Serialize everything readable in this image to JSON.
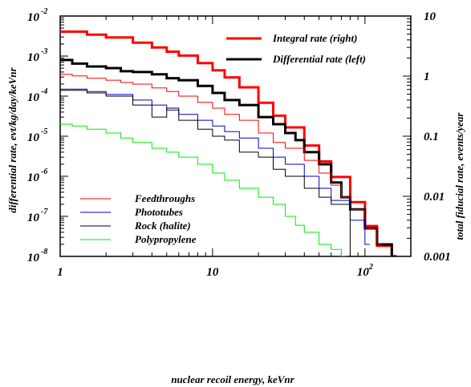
{
  "chart_data": {
    "type": "line",
    "style": "step-histogram",
    "x_axis": {
      "label": "nuclear recoil energy, keVnr",
      "scale": "log",
      "range": [
        1,
        200
      ],
      "ticks": [
        {
          "value": 1,
          "base": "1",
          "exp": ""
        },
        {
          "value": 10,
          "base": "10",
          "exp": ""
        },
        {
          "value": 100,
          "base": "10",
          "exp": "2"
        }
      ]
    },
    "y_left_axis": {
      "label": "differential rate, evt/kg/day/keVnr",
      "scale": "log",
      "range": [
        1e-08,
        0.01
      ],
      "ticks": [
        {
          "value": 0.01,
          "base": "10",
          "exp": "-2"
        },
        {
          "value": 0.001,
          "base": "10",
          "exp": "-3"
        },
        {
          "value": 0.0001,
          "base": "10",
          "exp": "-4"
        },
        {
          "value": 1e-05,
          "base": "10",
          "exp": "-5"
        },
        {
          "value": 1e-06,
          "base": "10",
          "exp": "-6"
        },
        {
          "value": 1e-07,
          "base": "10",
          "exp": "-7"
        },
        {
          "value": 1e-08,
          "base": "10",
          "exp": "-8"
        }
      ]
    },
    "y_right_axis": {
      "label": "total fiducial rate, events/year",
      "scale": "log",
      "range": [
        0.001,
        10
      ],
      "ticks": [
        {
          "value": 10,
          "text": "10"
        },
        {
          "value": 1,
          "text": "1"
        },
        {
          "value": 0.1,
          "text": "0.1"
        },
        {
          "value": 0.01,
          "text": "0.01"
        },
        {
          "value": 0.001,
          "text": "0.001"
        }
      ]
    },
    "legend_top": [
      {
        "name": "Integral rate (right)",
        "color": "#ff0000",
        "width": 3
      },
      {
        "name": "Differential rate (left)",
        "color": "#000000",
        "width": 3
      }
    ],
    "legend_bottom": [
      {
        "name": "Feedthroughs",
        "color": "#ff0000",
        "width": 1
      },
      {
        "name": "Phototubes",
        "color": "#0000cc",
        "width": 1
      },
      {
        "name": "Rock (halite)",
        "color": "#000000",
        "width": 1
      },
      {
        "name": "Polypropylene",
        "color": "#00ee00",
        "width": 1
      }
    ],
    "series": [
      {
        "name": "Integral rate (right)",
        "axis": "right",
        "color": "#ff0000",
        "width": 3,
        "x": [
          1,
          1.5,
          2,
          3,
          4,
          5,
          6,
          8,
          10,
          12,
          15,
          20,
          25,
          30,
          40,
          50,
          60,
          80,
          100,
          120,
          150
        ],
        "y": [
          5.5,
          4.9,
          4.4,
          3.6,
          3.0,
          2.55,
          2.2,
          1.65,
          1.25,
          0.95,
          0.65,
          0.36,
          0.22,
          0.14,
          0.07,
          0.038,
          0.021,
          0.008,
          0.0032,
          0.0015,
          0.001
        ]
      },
      {
        "name": "Differential rate (left)",
        "axis": "left",
        "color": "#000000",
        "width": 3,
        "x": [
          1,
          1.2,
          1.5,
          2,
          2.5,
          3,
          4,
          5,
          6,
          8,
          10,
          12,
          15,
          20,
          25,
          30,
          35,
          40,
          50,
          60,
          70,
          80,
          100,
          120,
          150
        ],
        "y": [
          0.0008,
          0.00065,
          0.00055,
          0.0005,
          0.00042,
          0.0004,
          0.00035,
          0.00028,
          0.00025,
          0.00018,
          0.00012,
          8e-05,
          6e-05,
          3e-05,
          2e-05,
          1.2e-05,
          8e-06,
          4e-06,
          2e-06,
          7e-07,
          3e-07,
          1.5e-07,
          5e-08,
          2e-08,
          1e-08
        ]
      },
      {
        "name": "Feedthroughs",
        "axis": "left",
        "color": "#ff0000",
        "width": 1,
        "x": [
          1,
          1.2,
          1.5,
          2,
          2.5,
          3,
          4,
          5,
          6,
          8,
          10,
          12,
          15,
          20,
          25,
          30,
          40,
          50,
          60,
          70,
          80,
          100,
          120
        ],
        "y": [
          0.00035,
          0.00032,
          0.00028,
          0.00025,
          0.00022,
          0.0002,
          0.00016,
          0.00013,
          0.0001,
          7e-05,
          5e-05,
          3.5e-05,
          2.5e-05,
          1.2e-05,
          7e-06,
          5e-06,
          2.5e-06,
          1.2e-06,
          6e-07,
          3e-07,
          1.5e-07,
          5e-08,
          2e-08
        ]
      },
      {
        "name": "Phototubes",
        "axis": "left",
        "color": "#0000cc",
        "width": 1,
        "x": [
          1,
          1.5,
          2,
          3,
          4,
          5,
          6,
          8,
          10,
          12,
          15,
          20,
          25,
          30,
          40,
          50,
          60,
          80,
          100
        ],
        "y": [
          0.00015,
          0.00013,
          0.00011,
          8e-05,
          6e-05,
          4.5e-05,
          3.5e-05,
          2.5e-05,
          1.8e-05,
          1.3e-05,
          9e-06,
          5e-06,
          3e-06,
          2e-06,
          1e-06,
          5e-07,
          2.5e-07,
          8e-08,
          2e-08
        ]
      },
      {
        "name": "Rock (halite)",
        "axis": "left",
        "color": "#000000",
        "width": 1,
        "x": [
          1,
          1.5,
          2,
          3,
          4,
          5,
          6,
          8,
          10,
          12,
          15,
          20,
          25,
          30,
          40,
          50,
          60,
          80
        ],
        "y": [
          0.00014,
          0.00012,
          0.0001,
          6e-05,
          3e-05,
          5e-05,
          2.5e-05,
          1.5e-05,
          1e-05,
          8e-06,
          4e-06,
          3e-06,
          1.5e-06,
          1e-06,
          5e-07,
          3e-07,
          2e-07,
          1e-08
        ]
      },
      {
        "name": "Polypropylene",
        "axis": "left",
        "color": "#00ee00",
        "width": 1,
        "x": [
          1,
          1.2,
          1.5,
          2,
          2.5,
          3,
          4,
          5,
          6,
          8,
          10,
          12,
          15,
          20,
          25,
          30,
          35,
          40,
          50,
          60,
          70
        ],
        "y": [
          2e-05,
          1.8e-05,
          1.5e-05,
          1.2e-05,
          9e-06,
          7e-06,
          5e-06,
          4e-06,
          3e-06,
          2e-06,
          1.2e-06,
          8e-07,
          5e-07,
          3e-07,
          2e-07,
          1e-07,
          6e-08,
          4e-08,
          2e-08,
          1.5e-08,
          1e-08
        ]
      }
    ]
  }
}
